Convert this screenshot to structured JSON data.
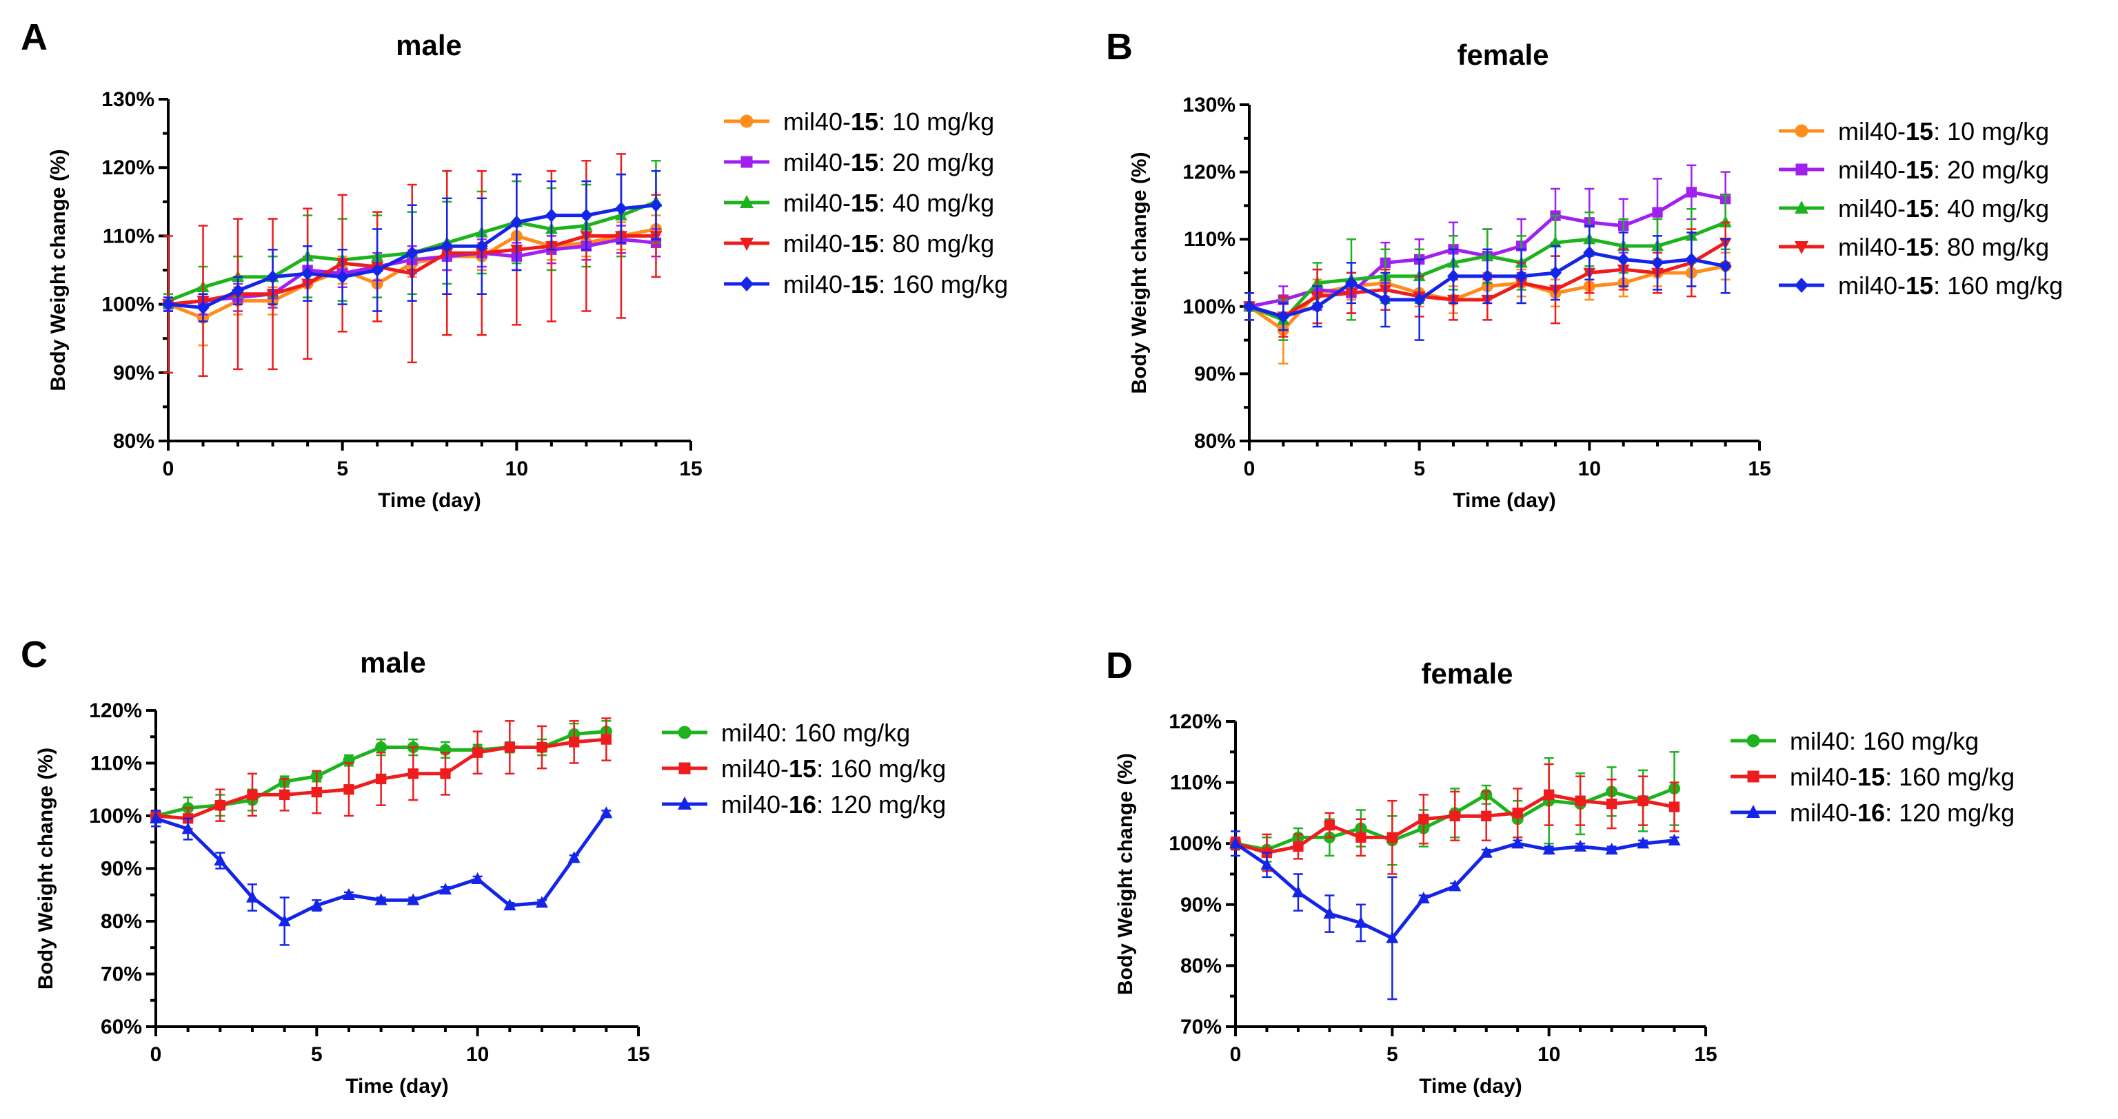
{
  "chart_data": [
    {
      "panel": "A",
      "type": "line",
      "title": "male",
      "xlabel": "Time (day)",
      "ylabel": "Body Weight change (%)",
      "xlim": [
        0,
        15
      ],
      "ylim": [
        80,
        130
      ],
      "xticks": [
        "0",
        "5",
        "10",
        "15"
      ],
      "yticks": [
        "80%",
        "90%",
        "100%",
        "110%",
        "120%",
        "130%"
      ],
      "legend_position": "right",
      "x": [
        0,
        1,
        2,
        3,
        4,
        5,
        6,
        7,
        8,
        9,
        10,
        11,
        12,
        13,
        14
      ],
      "series": [
        {
          "name": "mil40-",
          "name_bold": "15",
          "name_suffix": ": 10 mg/kg",
          "color": "#FF8C1A",
          "marker": "circle",
          "values": [
            100,
            98,
            100.5,
            100.5,
            103,
            105,
            103,
            106,
            107,
            107,
            110,
            108.5,
            109,
            110,
            111
          ],
          "errors": [
            1,
            4,
            2,
            2,
            2,
            2,
            2,
            2,
            2,
            2,
            2,
            2,
            2,
            2,
            2
          ]
        },
        {
          "name": "mil40-",
          "name_bold": "15",
          "name_suffix": ": 20 mg/kg",
          "color": "#A020F0",
          "marker": "square",
          "values": [
            100,
            100.5,
            101,
            101.5,
            105,
            104.5,
            105.5,
            106.5,
            107,
            107.5,
            107,
            108,
            108.5,
            109.5,
            109
          ],
          "errors": [
            1,
            2,
            2,
            2,
            2,
            2,
            2,
            2,
            2,
            2,
            2,
            2,
            2,
            2,
            2
          ]
        },
        {
          "name": "mil40-",
          "name_bold": "15",
          "name_suffix": ": 40 mg/kg",
          "color": "#1DB31D",
          "marker": "triangle-up",
          "values": [
            100.5,
            102.5,
            104,
            104,
            107,
            106.5,
            107,
            107.5,
            109,
            110.5,
            112,
            111,
            111.5,
            113,
            115
          ],
          "errors": [
            1,
            3,
            3,
            3,
            6,
            6,
            6,
            6,
            6,
            6,
            6,
            6,
            6,
            6,
            6
          ]
        },
        {
          "name": "mil40-",
          "name_bold": "15",
          "name_suffix": ": 80  mg/kg",
          "color": "#EE1C1C",
          "marker": "triangle-down",
          "values": [
            100,
            100.5,
            101.5,
            101.5,
            103,
            106,
            105.5,
            104.5,
            107.5,
            107.5,
            108,
            108.5,
            110,
            110,
            110
          ],
          "errors": [
            10,
            11,
            11,
            11,
            11,
            10,
            8,
            13,
            12,
            12,
            11,
            11,
            11,
            12,
            6
          ]
        },
        {
          "name": "mil40-",
          "name_bold": "15",
          "name_suffix": ": 160  mg/kg",
          "color": "#1425E8",
          "marker": "diamond",
          "values": [
            100,
            99.5,
            102,
            104,
            104.5,
            104,
            105,
            107.5,
            108.5,
            108.5,
            112,
            113,
            113,
            114,
            114.5
          ],
          "errors": [
            1,
            2,
            2,
            4,
            4,
            4,
            6,
            7,
            7,
            7,
            7,
            5,
            5,
            5,
            5
          ]
        }
      ]
    },
    {
      "panel": "B",
      "type": "line",
      "title": "female",
      "xlabel": "Time (day)",
      "ylabel": "Body Weight change (%)",
      "xlim": [
        0,
        15
      ],
      "ylim": [
        80,
        130
      ],
      "xticks": [
        "0",
        "5",
        "10",
        "15"
      ],
      "yticks": [
        "80%",
        "90%",
        "100%",
        "110%",
        "120%",
        "130%"
      ],
      "legend_position": "right",
      "x": [
        0,
        1,
        2,
        3,
        4,
        5,
        6,
        7,
        8,
        9,
        10,
        11,
        12,
        13,
        14
      ],
      "series": [
        {
          "name": "mil40-",
          "name_bold": "15",
          "name_suffix": ": 10 mg/kg",
          "color": "#FF8C1A",
          "marker": "circle",
          "values": [
            100,
            96.5,
            102,
            103,
            103.5,
            102,
            101,
            103,
            103.5,
            102,
            103,
            103.5,
            105,
            105,
            106
          ],
          "errors": [
            2,
            5,
            2,
            2,
            2,
            2,
            2,
            2,
            2,
            2,
            2,
            2,
            2,
            2,
            2
          ]
        },
        {
          "name": "mil40-",
          "name_bold": "15",
          "name_suffix": ": 20 mg/kg",
          "color": "#A020F0",
          "marker": "square",
          "values": [
            100,
            101,
            102.5,
            102,
            106.5,
            107,
            108.5,
            107.5,
            109,
            113.5,
            112.5,
            112,
            114,
            117,
            116
          ],
          "errors": [
            2,
            2,
            3,
            3,
            3,
            3,
            4,
            4,
            4,
            4,
            5,
            4,
            5,
            4,
            4
          ]
        },
        {
          "name": "mil40-",
          "name_bold": "15",
          "name_suffix": ": 40 mg/kg",
          "color": "#1DB31D",
          "marker": "triangle-up",
          "values": [
            100,
            98,
            103.5,
            104,
            104.5,
            104.5,
            106.5,
            107.5,
            106.5,
            109.5,
            110,
            109,
            109,
            110.5,
            112.5
          ],
          "errors": [
            2,
            3,
            3,
            6,
            4,
            4,
            4,
            4,
            4,
            4,
            4,
            4,
            4,
            4,
            4
          ]
        },
        {
          "name": "mil40-",
          "name_bold": "15",
          "name_suffix": ": 80 mg/kg",
          "color": "#EE1C1C",
          "marker": "triangle-down",
          "values": [
            100,
            98.5,
            101.5,
            102,
            102.5,
            101.5,
            101,
            101,
            103.5,
            102.5,
            105,
            105.5,
            105,
            106.5,
            109.5
          ],
          "errors": [
            2,
            3,
            4,
            3,
            3,
            3,
            3,
            3,
            3,
            5,
            3,
            3,
            3,
            5,
            3
          ]
        },
        {
          "name": "mil40-",
          "name_bold": "15",
          "name_suffix": ": 160 mg/kg",
          "color": "#1425E8",
          "marker": "diamond",
          "values": [
            100,
            98.5,
            100,
            103.5,
            101,
            101,
            104.5,
            104.5,
            104.5,
            105,
            108,
            107,
            106.5,
            107,
            106
          ],
          "errors": [
            2,
            2,
            3,
            3,
            4,
            6,
            4,
            4,
            4,
            4,
            4,
            4,
            4,
            4,
            4
          ]
        }
      ]
    },
    {
      "panel": "C",
      "type": "line",
      "title": "male",
      "xlabel": "Time (day)",
      "ylabel": "Body Weight change (%)",
      "xlim": [
        0,
        15
      ],
      "ylim": [
        60,
        120
      ],
      "xticks": [
        "0",
        "5",
        "10",
        "15"
      ],
      "yticks": [
        "60%",
        "70%",
        "80%",
        "90%",
        "100%",
        "110%",
        "120%"
      ],
      "legend_position": "right",
      "x": [
        0,
        1,
        2,
        3,
        4,
        5,
        6,
        7,
        8,
        9,
        10,
        11,
        12,
        13,
        14
      ],
      "series": [
        {
          "name": "mil40",
          "name_bold": "",
          "name_suffix": ": 160 mg/kg",
          "color": "#1DB31D",
          "marker": "circle",
          "values": [
            100,
            101.5,
            102,
            103,
            106.5,
            107.5,
            110.5,
            113,
            113,
            112.5,
            112.5,
            113,
            113,
            115.5,
            116
          ],
          "errors": [
            1,
            2,
            2,
            2,
            1,
            1,
            1,
            1.5,
            1.5,
            1.5,
            1,
            1,
            1.5,
            2,
            2
          ]
        },
        {
          "name": "mil40-",
          "name_bold": "15",
          "name_suffix": ": 160 mg/kg",
          "color": "#EE1C1C",
          "marker": "square",
          "values": [
            100,
            99.5,
            102,
            104,
            104,
            104.5,
            105,
            107,
            108,
            108,
            112,
            113,
            113,
            114,
            114.5
          ],
          "errors": [
            1,
            2,
            3,
            4,
            3,
            4,
            5,
            5,
            5,
            4,
            4,
            5,
            4,
            4,
            4
          ]
        },
        {
          "name": "mil40-",
          "name_bold": "16",
          "name_suffix": ": 120 mg/kg",
          "color": "#1425E8",
          "marker": "triangle-up",
          "values": [
            99.5,
            97.5,
            91.5,
            84.5,
            80,
            83,
            85,
            84,
            84,
            86,
            88,
            83,
            83.5,
            92,
            100.5
          ],
          "errors": [
            1.5,
            2,
            1.5,
            2.5,
            4.5,
            1,
            0.5,
            0.5,
            0.5,
            0.5,
            0.5,
            0.5,
            0.5,
            0.5,
            0.5
          ]
        }
      ]
    },
    {
      "panel": "D",
      "type": "line",
      "title": "female",
      "xlabel": "Time (day)",
      "ylabel": "Body Weight change (%)",
      "xlim": [
        0,
        15
      ],
      "ylim": [
        70,
        120
      ],
      "xticks": [
        "0",
        "5",
        "10",
        "15"
      ],
      "yticks": [
        "70%",
        "80%",
        "90%",
        "100%",
        "110%",
        "120%"
      ],
      "legend_position": "right",
      "x": [
        0,
        1,
        2,
        3,
        4,
        5,
        6,
        7,
        8,
        9,
        10,
        11,
        12,
        13,
        14
      ],
      "series": [
        {
          "name": "mil40",
          "name_bold": "",
          "name_suffix": ": 160 mg/kg",
          "color": "#1DB31D",
          "marker": "circle",
          "values": [
            100,
            99,
            101,
            101,
            102.5,
            100.5,
            102.5,
            105,
            108,
            104,
            107,
            106.5,
            108.5,
            107,
            109
          ],
          "errors": [
            1,
            2,
            1.5,
            3,
            3,
            4,
            3,
            4,
            1.5,
            3,
            7,
            5,
            4,
            5,
            6
          ]
        },
        {
          "name": "mil40-",
          "name_bold": "15",
          "name_suffix": ": 160 mg/kg",
          "color": "#EE1C1C",
          "marker": "square",
          "values": [
            100,
            98.5,
            99.5,
            103,
            101,
            101,
            104,
            104.5,
            104.5,
            105,
            108,
            107,
            106.5,
            107,
            106
          ],
          "errors": [
            1,
            3,
            2,
            2,
            3,
            6,
            4,
            4,
            4,
            4,
            5,
            4,
            4,
            4,
            4
          ]
        },
        {
          "name": "mil40-",
          "name_bold": "16",
          "name_suffix": ": 120 mg/kg",
          "color": "#1425E8",
          "marker": "triangle-up",
          "values": [
            100,
            96.5,
            92,
            88.5,
            87,
            84.5,
            91,
            93,
            98.5,
            100,
            99,
            99.5,
            99,
            100,
            100.5
          ],
          "errors": [
            2,
            2,
            3,
            3,
            3,
            10,
            0.5,
            0.5,
            0.5,
            0.5,
            0.5,
            0.5,
            0.5,
            0.5,
            0.5
          ]
        }
      ]
    }
  ]
}
